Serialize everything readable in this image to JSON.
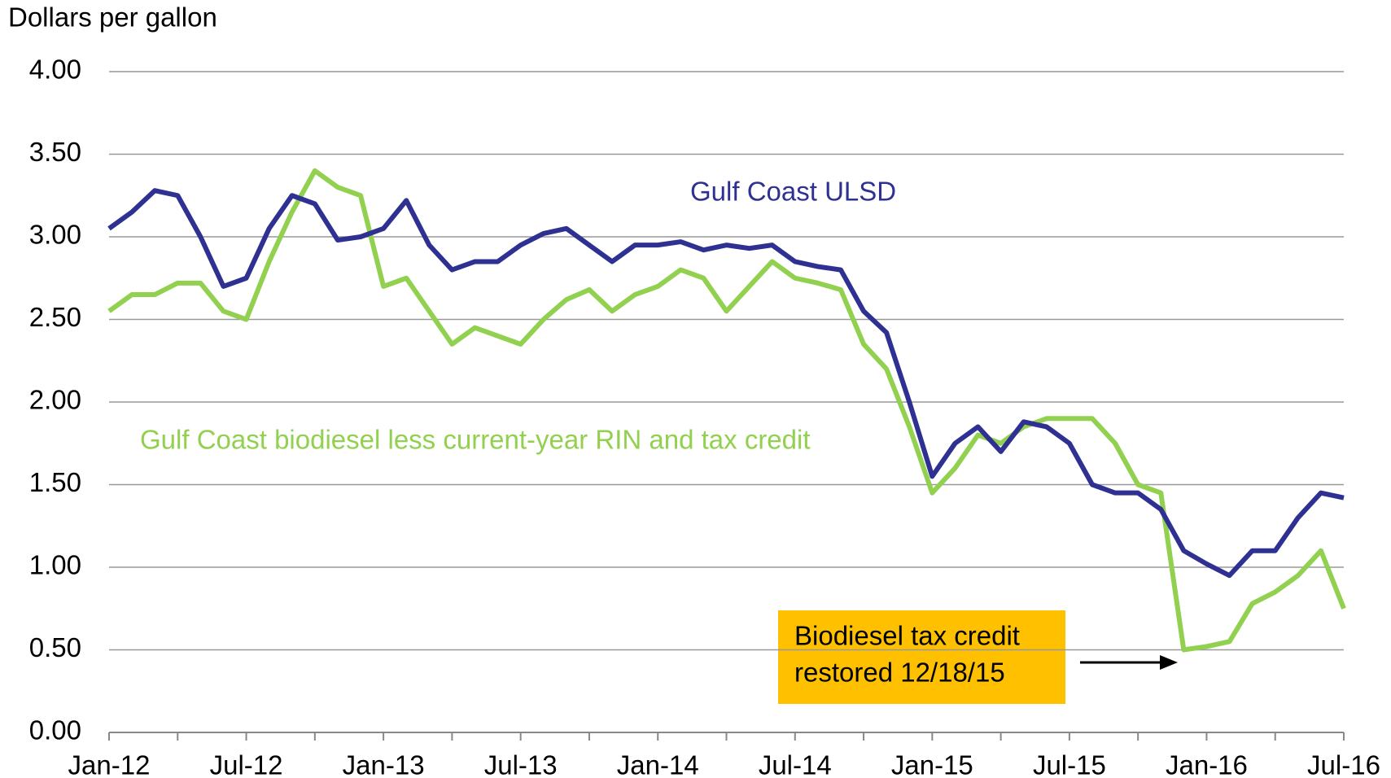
{
  "chart_data": {
    "type": "line",
    "y_axis_label": "Dollars per gallon",
    "x": [
      "2012-01",
      "2012-02",
      "2012-03",
      "2012-04",
      "2012-05",
      "2012-06",
      "2012-07",
      "2012-08",
      "2012-09",
      "2012-10",
      "2012-11",
      "2012-12",
      "2013-01",
      "2013-02",
      "2013-03",
      "2013-04",
      "2013-05",
      "2013-06",
      "2013-07",
      "2013-08",
      "2013-09",
      "2013-10",
      "2013-11",
      "2013-12",
      "2014-01",
      "2014-02",
      "2014-03",
      "2014-04",
      "2014-05",
      "2014-06",
      "2014-07",
      "2014-08",
      "2014-09",
      "2014-10",
      "2014-11",
      "2014-12",
      "2015-01",
      "2015-02",
      "2015-03",
      "2015-04",
      "2015-05",
      "2015-06",
      "2015-07",
      "2015-08",
      "2015-09",
      "2015-10",
      "2015-11",
      "2015-12",
      "2016-01",
      "2016-02",
      "2016-03",
      "2016-04",
      "2016-05",
      "2016-06",
      "2016-07"
    ],
    "series": [
      {
        "name": "Gulf Coast ULSD",
        "color": "#2e3192",
        "values": [
          3.05,
          3.15,
          3.28,
          3.25,
          3.0,
          2.7,
          2.75,
          3.05,
          3.25,
          3.2,
          2.98,
          3.0,
          3.05,
          3.22,
          2.95,
          2.8,
          2.85,
          2.85,
          2.95,
          3.02,
          3.05,
          2.95,
          2.85,
          2.95,
          2.95,
          2.97,
          2.92,
          2.95,
          2.93,
          2.95,
          2.85,
          2.82,
          2.8,
          2.55,
          2.42,
          2.0,
          1.55,
          1.75,
          1.85,
          1.7,
          1.88,
          1.85,
          1.75,
          1.5,
          1.45,
          1.45,
          1.35,
          1.1,
          1.02,
          0.95,
          1.1,
          1.1,
          1.3,
          1.45,
          1.42
        ]
      },
      {
        "name": "Gulf Coast biodiesel less current-year RIN and tax credit",
        "color": "#92d050",
        "values": [
          2.55,
          2.65,
          2.65,
          2.72,
          2.72,
          2.55,
          2.5,
          2.85,
          3.15,
          3.4,
          3.3,
          3.25,
          2.7,
          2.75,
          2.55,
          2.35,
          2.45,
          2.4,
          2.35,
          2.5,
          2.62,
          2.68,
          2.55,
          2.65,
          2.7,
          2.8,
          2.75,
          2.55,
          2.7,
          2.85,
          2.75,
          2.72,
          2.68,
          2.35,
          2.2,
          1.85,
          1.45,
          1.6,
          1.8,
          1.75,
          1.85,
          1.9,
          1.9,
          1.9,
          1.75,
          1.5,
          1.45,
          0.5,
          0.52,
          0.55,
          0.78,
          0.85,
          0.95,
          1.1,
          0.75
        ]
      }
    ],
    "annotation": [
      "Biodiesel tax credit",
      "restored 12/18/15"
    ],
    "ylim": [
      0,
      4
    ],
    "yticks": [
      {
        "value": 0,
        "label": "0.00"
      },
      {
        "value": 0.5,
        "label": "0.50"
      },
      {
        "value": 1,
        "label": "1.00"
      },
      {
        "value": 1.5,
        "label": "1.50"
      },
      {
        "value": 2,
        "label": "2.00"
      },
      {
        "value": 2.5,
        "label": "2.50"
      },
      {
        "value": 3,
        "label": "3.00"
      },
      {
        "value": 3.5,
        "label": "3.50"
      },
      {
        "value": 4,
        "label": "4.00"
      }
    ],
    "xticks": [
      {
        "value": "2012-01",
        "label": "Jan-12"
      },
      {
        "value": "2012-07",
        "label": "Jul-12"
      },
      {
        "value": "2013-01",
        "label": "Jan-13"
      },
      {
        "value": "2013-07",
        "label": "Jul-13"
      },
      {
        "value": "2014-01",
        "label": "Jan-14"
      },
      {
        "value": "2014-07",
        "label": "Jul-14"
      },
      {
        "value": "2015-01",
        "label": "Jan-15"
      },
      {
        "value": "2015-07",
        "label": "Jul-15"
      },
      {
        "value": "2016-01",
        "label": "Jan-16"
      },
      {
        "value": "2016-07",
        "label": "Jul-16"
      }
    ],
    "xminorticks": [
      "2012-04",
      "2012-10",
      "2013-04",
      "2013-10",
      "2014-04",
      "2014-10",
      "2015-04",
      "2015-10",
      "2016-04"
    ],
    "grid": true
  }
}
